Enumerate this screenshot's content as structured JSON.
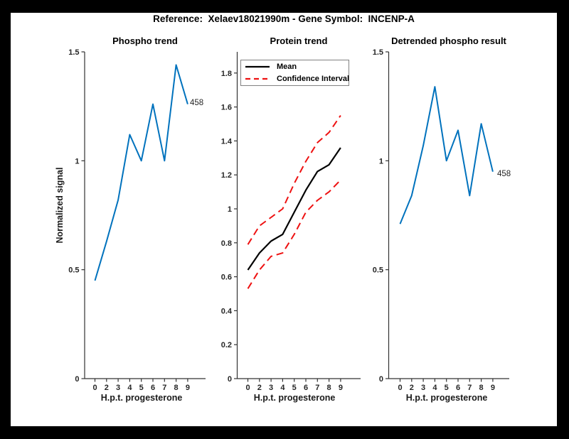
{
  "figure": {
    "title": "Reference:  Xelaev18021990m - Gene Symbol:  INCENP-A",
    "ylabel": "Normalized signal"
  },
  "colors": {
    "signal_blue": "#0072bd",
    "mean_black": "#000000",
    "ci_red": "#ee1111",
    "axis_gray": "#333333"
  },
  "chart_data": [
    {
      "type": "line",
      "title": "Phospho trend",
      "xlabel": "H.p.t. progesterone",
      "ylabel": "Normalized signal",
      "x_tick_labels": [
        "0",
        "2",
        "3",
        "4",
        "5",
        "6",
        "7",
        "8",
        "9"
      ],
      "y_ticks": [
        0,
        0.5,
        1,
        1.5
      ],
      "y_tick_labels": [
        "0",
        "0.5",
        "1",
        "1.5"
      ],
      "ylim": [
        0,
        1.5
      ],
      "grid": false,
      "legend": null,
      "end_label": "458",
      "series": [
        {
          "name": "phospho-signal",
          "color": "#0072bd",
          "dash": "solid",
          "width": 2,
          "values": [
            0.45,
            0.63,
            0.82,
            1.12,
            1.0,
            1.26,
            1.0,
            1.44,
            1.26
          ]
        }
      ]
    },
    {
      "type": "line",
      "title": "Protein trend",
      "xlabel": "H.p.t. progesterone",
      "x_tick_labels": [
        "0",
        "2",
        "3",
        "4",
        "5",
        "6",
        "7",
        "8",
        "9"
      ],
      "y_ticks": [
        0,
        0.2,
        0.4,
        0.6,
        0.8,
        1,
        1.2,
        1.4,
        1.6,
        1.8
      ],
      "y_tick_labels": [
        "0",
        "0.2",
        "0.4",
        "0.6",
        "0.8",
        "1",
        "1.2",
        "1.4",
        "1.6",
        "1.8"
      ],
      "ylim": [
        0,
        1.9
      ],
      "grid": false,
      "legend": {
        "position": "top-left",
        "entries": [
          {
            "label": "Mean",
            "color": "#000000",
            "dash": "solid"
          },
          {
            "label": "Confidence Interval",
            "color": "#ee1111",
            "dash": "dashed"
          }
        ]
      },
      "end_label": null,
      "series": [
        {
          "name": "protein-mean",
          "color": "#000000",
          "dash": "solid",
          "width": 2.2,
          "values": [
            0.64,
            0.74,
            0.81,
            0.85,
            0.98,
            1.11,
            1.22,
            1.26,
            1.36
          ]
        },
        {
          "name": "ci-upper",
          "color": "#ee1111",
          "dash": "dashed",
          "width": 2,
          "values": [
            0.79,
            0.9,
            0.95,
            1.0,
            1.15,
            1.28,
            1.39,
            1.45,
            1.55
          ]
        },
        {
          "name": "ci-lower",
          "color": "#ee1111",
          "dash": "dashed",
          "width": 2,
          "values": [
            0.53,
            0.64,
            0.72,
            0.74,
            0.85,
            0.98,
            1.05,
            1.1,
            1.17
          ]
        }
      ]
    },
    {
      "type": "line",
      "title": "Detrended phospho result",
      "xlabel": "H.p.t. progesterone",
      "x_tick_labels": [
        "0",
        "2",
        "3",
        "4",
        "5",
        "6",
        "7",
        "8",
        "9"
      ],
      "y_ticks": [
        0,
        0.5,
        1,
        1.5
      ],
      "y_tick_labels": [
        "0",
        "0.5",
        "1",
        "1.5"
      ],
      "ylim": [
        0,
        1.5
      ],
      "grid": false,
      "legend": null,
      "end_label": "458",
      "series": [
        {
          "name": "detrended-signal",
          "color": "#0072bd",
          "dash": "solid",
          "width": 2,
          "values": [
            0.71,
            0.84,
            1.07,
            1.34,
            1.0,
            1.14,
            0.84,
            1.17,
            0.95
          ]
        }
      ]
    }
  ]
}
